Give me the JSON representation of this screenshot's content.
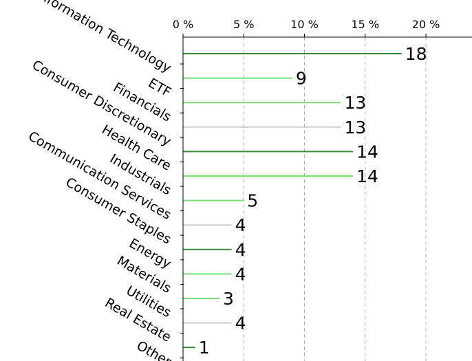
{
  "chart_data": {
    "type": "bar",
    "orientation": "horizontal",
    "categories": [
      "Information Technology",
      "ETF",
      "Financials",
      "Consumer Discretionary",
      "Health Care",
      "Industrials",
      "Communication Services",
      "Consumer Staples",
      "Energy",
      "Materials",
      "Utilities",
      "Real Estate",
      "Other"
    ],
    "values": [
      18,
      9,
      13,
      13,
      14,
      14,
      5,
      4,
      4,
      4,
      3,
      4,
      1
    ],
    "colors": [
      "#2e8b3a",
      "#77dd77",
      "#77dd77",
      "#cccccc",
      "#2e8b3a",
      "#77dd77",
      "#77dd77",
      "#cccccc",
      "#2e8b3a",
      "#77dd77",
      "#77dd77",
      "#cccccc",
      "#2e8b3a"
    ],
    "x_ticks": [
      "0 %",
      "5 %",
      "10 %",
      "15 %",
      "20 %"
    ],
    "x_tick_values": [
      0,
      5,
      10,
      15,
      20
    ],
    "xlim": [
      0,
      23.6
    ],
    "x_axis_position": "top",
    "grid": "vertical dashed",
    "legend": "none"
  }
}
